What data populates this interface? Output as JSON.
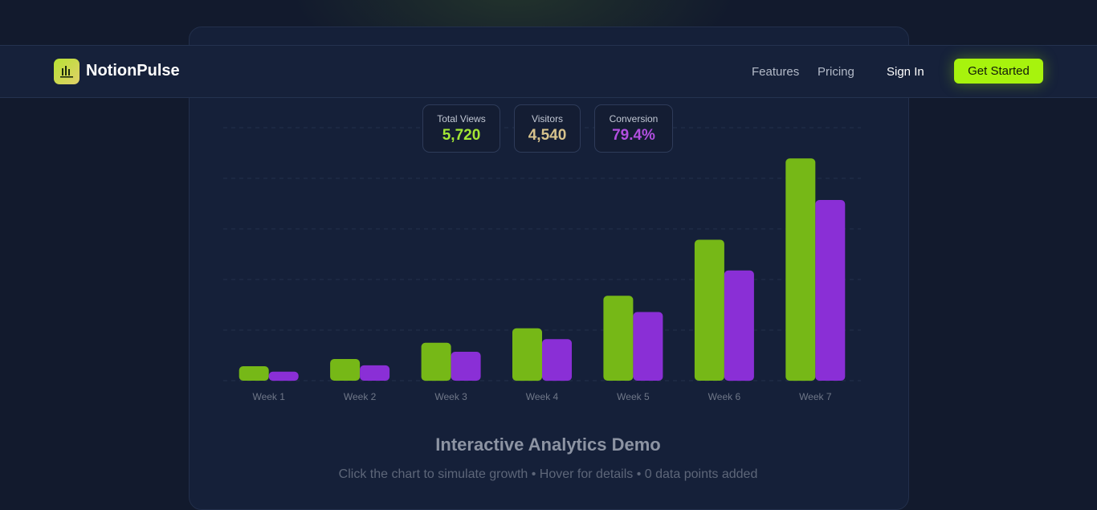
{
  "brand": {
    "name": "NotionPulse",
    "logo_icon": "bar-chart-icon"
  },
  "nav": {
    "links": [
      "Features",
      "Pricing"
    ],
    "sign_in": "Sign In",
    "cta": "Get Started"
  },
  "stats": [
    {
      "label": "Total Views",
      "value": "5,720",
      "color": "#a3e635"
    },
    {
      "label": "Visitors",
      "value": "4,540",
      "color": "#d6c28c"
    },
    {
      "label": "Conversion",
      "value": "79.4%",
      "color": "#b24fe0"
    }
  ],
  "chart_data": {
    "type": "bar",
    "categories": [
      "Week 1",
      "Week 2",
      "Week 3",
      "Week 4",
      "Week 5",
      "Week 6",
      "Week 7"
    ],
    "series": [
      {
        "values": [
          80,
          120,
          210,
          290,
          470,
          780,
          1230
        ],
        "color": "#76b817"
      },
      {
        "values": [
          50,
          85,
          160,
          230,
          380,
          610,
          1000
        ],
        "color": "#8a2fd6"
      }
    ],
    "ylim": [
      0,
      1400
    ],
    "grid": true,
    "title": "",
    "xlabel": "",
    "ylabel": ""
  },
  "demo": {
    "title": "Interactive Analytics Demo",
    "subtitle": "Click the chart to simulate growth • Hover for details • 0 data points added"
  }
}
